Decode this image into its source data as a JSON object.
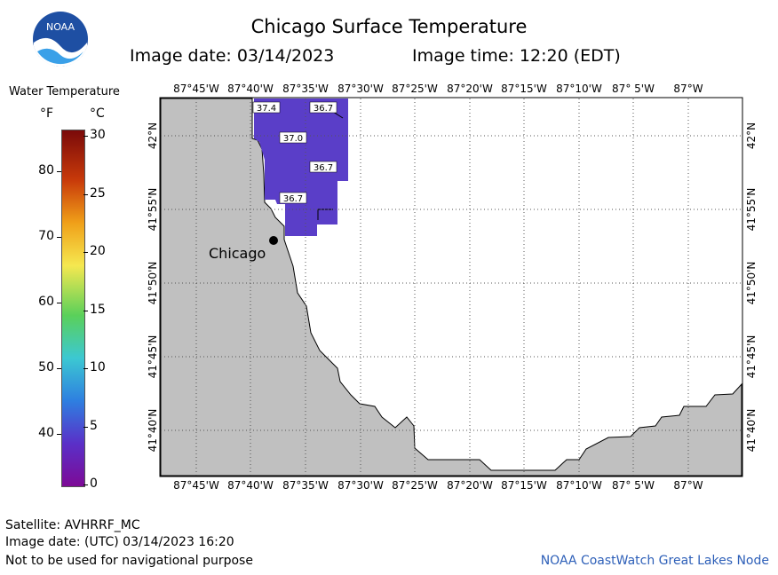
{
  "header": {
    "title": "Chicago Surface Temperature",
    "image_date": "Image date: 03/14/2023",
    "image_time": "Image time: 12:20 (EDT)"
  },
  "logo": {
    "text": "NOAA",
    "icon": "noaa-logo-icon"
  },
  "legend": {
    "title": "Water Temperature",
    "unit_f": "°F",
    "unit_c": "°C",
    "f_ticks": [
      "80",
      "70",
      "60",
      "50",
      "40"
    ],
    "c_ticks": [
      "30",
      "25",
      "20",
      "15",
      "10",
      "5",
      "0"
    ],
    "colors": [
      "#7a0a0a",
      "#c83a0a",
      "#f0a019",
      "#f5e850",
      "#5ad05a",
      "#3cc8d2",
      "#2e7fe0",
      "#5a30c8",
      "#7d0a96"
    ]
  },
  "map": {
    "lon_labels": [
      "87°45'W",
      "87°40'W",
      "87°35'W",
      "87°30'W",
      "87°25'W",
      "87°20'W",
      "87°15'W",
      "87°10'W",
      "87° 5'W",
      "87°W"
    ],
    "lat_labels": [
      "42°N",
      "41°55'N",
      "41°50'N",
      "41°45'N",
      "41°40'N"
    ],
    "city": "Chicago",
    "temperature_labels": [
      "37.4",
      "36.7",
      "37.0",
      "36.7",
      "36.7"
    ],
    "colors": {
      "land": "#c0c0c0",
      "water_data": "#5a3ec8",
      "grid": "#555555"
    }
  },
  "footer": {
    "satellite": "Satellite: AVHRRF_MC",
    "utc_date": "Image date: (UTC) 03/14/2023   16:20",
    "disclaimer": "Not to be used for navigational purpose",
    "credit": "NOAA CoastWatch Great Lakes Node"
  }
}
